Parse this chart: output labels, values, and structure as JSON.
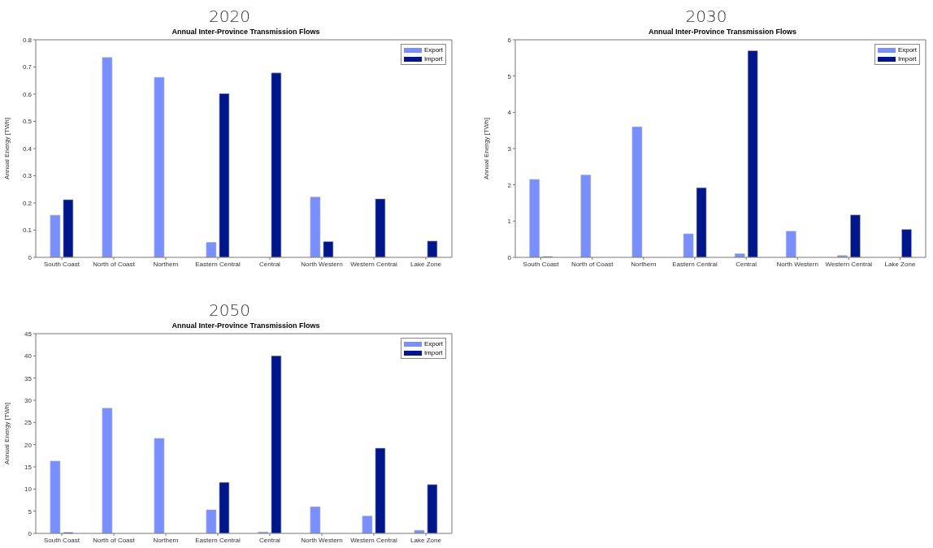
{
  "chart_data": [
    {
      "type": "bar",
      "title": "2020",
      "subtitle": "Annual Inter-Province Transmission Flows",
      "ylabel": "Annual Energy [TWh]",
      "categories": [
        "South Coast",
        "North of Coast",
        "Northern",
        "Eastern Central",
        "Central",
        "North Western",
        "Western Central",
        "Lake Zone"
      ],
      "series": [
        {
          "name": "Export",
          "color": "#7a8fff",
          "values": [
            0.155,
            0.735,
            0.662,
            0.055,
            0,
            0.222,
            0,
            0
          ]
        },
        {
          "name": "Import",
          "color": "#00168a",
          "values": [
            0.212,
            0,
            0,
            0.602,
            0.678,
            0.058,
            0.215,
            0.06
          ]
        }
      ],
      "ylim": [
        0,
        0.8
      ],
      "yticks": [
        0,
        0.1,
        0.2,
        0.3,
        0.4,
        0.5,
        0.6,
        0.7,
        0.8
      ],
      "grid": false,
      "legend": "top right"
    },
    {
      "type": "bar",
      "title": "2030",
      "subtitle": "Annual Inter-Province Transmission Flows",
      "ylabel": "Annual Energy [TWh]",
      "categories": [
        "South Coast",
        "North of Coast",
        "Northern",
        "Eastern Central",
        "Central",
        "North Western",
        "Western Central",
        "Lake Zone"
      ],
      "series": [
        {
          "name": "Export",
          "color": "#7a8fff",
          "values": [
            2.15,
            2.27,
            3.6,
            0.65,
            0.1,
            0.72,
            0.05,
            0
          ]
        },
        {
          "name": "Import",
          "color": "#00168a",
          "values": [
            0.02,
            0,
            0,
            1.92,
            5.7,
            0,
            1.17,
            0.77
          ]
        }
      ],
      "ylim": [
        0,
        6
      ],
      "yticks": [
        0,
        1,
        2,
        3,
        4,
        5,
        6
      ],
      "grid": false,
      "legend": "top right"
    },
    {
      "type": "bar",
      "title": "2050",
      "subtitle": "Annual Inter-Province Transmission Flows",
      "ylabel": "Annual Energy [TWh]",
      "categories": [
        "South Coast",
        "North of Coast",
        "Northern",
        "Eastern Central",
        "Central",
        "North Western",
        "Western Central",
        "Lake Zone"
      ],
      "series": [
        {
          "name": "Export",
          "color": "#7a8fff",
          "values": [
            16.3,
            28.2,
            21.4,
            5.3,
            0.3,
            6,
            3.9,
            0.7
          ]
        },
        {
          "name": "Import",
          "color": "#00168a",
          "values": [
            0.2,
            0,
            0,
            11.5,
            40,
            0,
            19.2,
            11
          ]
        }
      ],
      "ylim": [
        0,
        45
      ],
      "yticks": [
        0,
        5,
        10,
        15,
        20,
        25,
        30,
        35,
        40,
        45
      ],
      "grid": false,
      "legend": "top right"
    }
  ]
}
